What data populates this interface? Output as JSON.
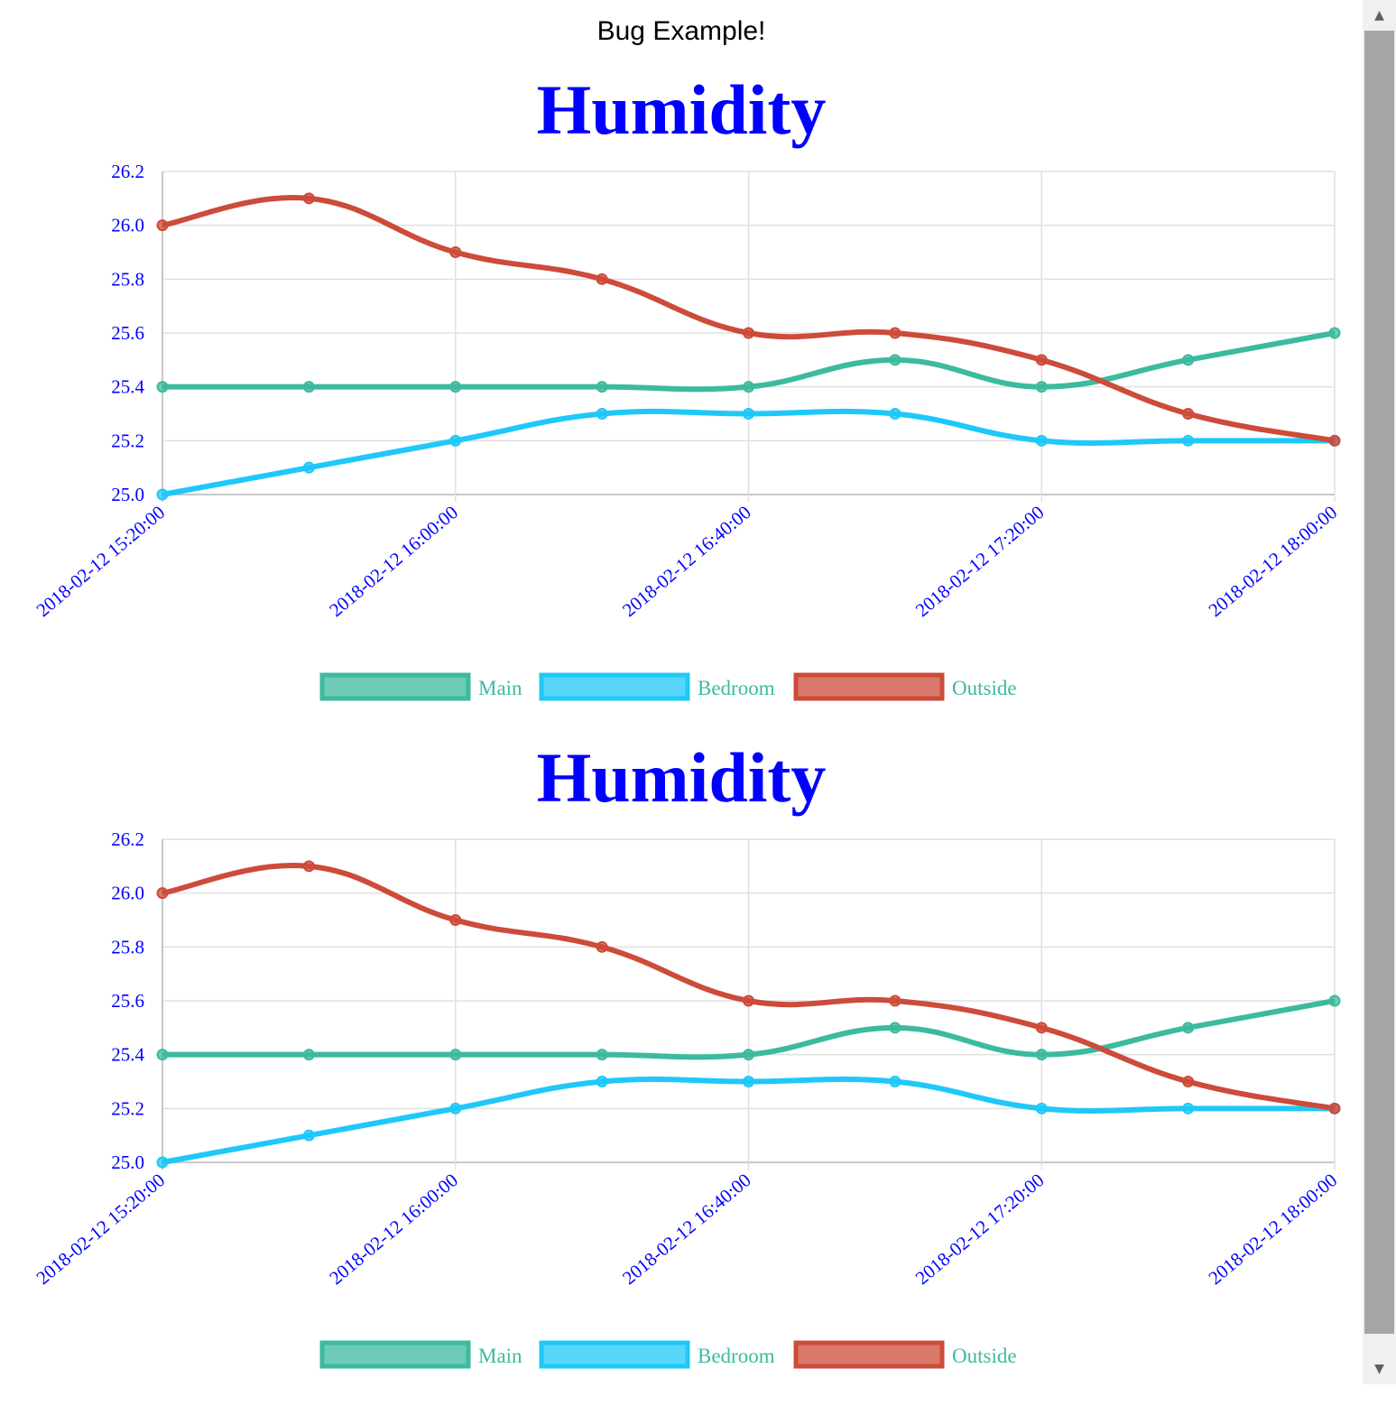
{
  "page": {
    "header": "Bug Example!"
  },
  "colors": {
    "main": "#3cba9f",
    "bedroom": "#1fc8f8",
    "outside": "#cd4b3a",
    "text": "#0000ff",
    "legend_text": "#3cba9f"
  },
  "chart_data": [
    {
      "type": "line",
      "title": "Humidity",
      "x": [
        "2018-02-12 15:20:00",
        "2018-02-12 15:40:00",
        "2018-02-12 16:00:00",
        "2018-02-12 16:20:00",
        "2018-02-12 16:40:00",
        "2018-02-12 17:00:00",
        "2018-02-12 17:20:00",
        "2018-02-12 17:40:00",
        "2018-02-12 18:00:00"
      ],
      "x_tick_labels": [
        "2018-02-12 15:20:00",
        "2018-02-12 16:00:00",
        "2018-02-12 16:40:00",
        "2018-02-12 17:20:00",
        "2018-02-12 18:00:00"
      ],
      "y_ticks": [
        "25.0",
        "25.2",
        "25.4",
        "25.6",
        "25.8",
        "26.0",
        "26.2"
      ],
      "ylim": [
        25.0,
        26.2
      ],
      "grid": true,
      "legend_position": "bottom",
      "series": [
        {
          "name": "Main",
          "color": "#3cba9f",
          "values": [
            25.4,
            25.4,
            25.4,
            25.4,
            25.4,
            25.5,
            25.4,
            25.5,
            25.6
          ]
        },
        {
          "name": "Bedroom",
          "color": "#1fc8f8",
          "values": [
            25.0,
            25.1,
            25.2,
            25.3,
            25.3,
            25.3,
            25.2,
            25.2,
            25.2
          ]
        },
        {
          "name": "Outside",
          "color": "#cd4b3a",
          "values": [
            26.0,
            26.1,
            25.9,
            25.8,
            25.6,
            25.6,
            25.5,
            25.3,
            25.2
          ]
        }
      ]
    },
    {
      "type": "line",
      "title": "Humidity",
      "x": [
        "2018-02-12 15:20:00",
        "2018-02-12 15:40:00",
        "2018-02-12 16:00:00",
        "2018-02-12 16:20:00",
        "2018-02-12 16:40:00",
        "2018-02-12 17:00:00",
        "2018-02-12 17:20:00",
        "2018-02-12 17:40:00",
        "2018-02-12 18:00:00"
      ],
      "x_tick_labels": [
        "2018-02-12 15:20:00",
        "2018-02-12 16:00:00",
        "2018-02-12 16:40:00",
        "2018-02-12 17:20:00",
        "2018-02-12 18:00:00"
      ],
      "y_ticks": [
        "25.0",
        "25.2",
        "25.4",
        "25.6",
        "25.8",
        "26.0",
        "26.2"
      ],
      "ylim": [
        25.0,
        26.2
      ],
      "grid": true,
      "legend_position": "bottom",
      "series": [
        {
          "name": "Main",
          "color": "#3cba9f",
          "values": [
            25.4,
            25.4,
            25.4,
            25.4,
            25.4,
            25.5,
            25.4,
            25.5,
            25.6
          ]
        },
        {
          "name": "Bedroom",
          "color": "#1fc8f8",
          "values": [
            25.0,
            25.1,
            25.2,
            25.3,
            25.3,
            25.3,
            25.2,
            25.2,
            25.2
          ]
        },
        {
          "name": "Outside",
          "color": "#cd4b3a",
          "values": [
            26.0,
            26.1,
            25.9,
            25.8,
            25.6,
            25.6,
            25.5,
            25.3,
            25.2
          ]
        }
      ]
    }
  ],
  "scrollbar": {
    "up_icon": "▲",
    "down_icon": "▼"
  }
}
